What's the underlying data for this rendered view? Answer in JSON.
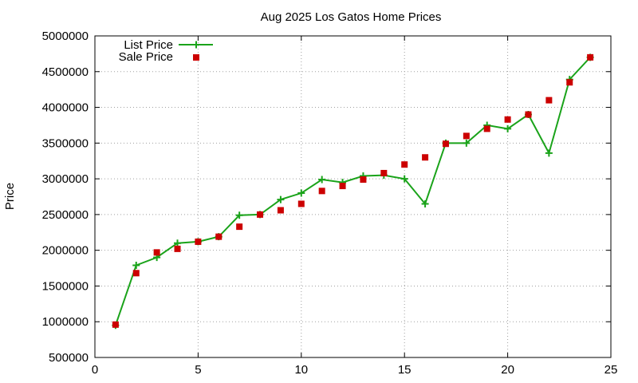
{
  "chart_data": {
    "type": "line",
    "title": "Aug 2025 Los Gatos Home Prices",
    "xlabel": "",
    "ylabel": "Price",
    "xlim": [
      0,
      25
    ],
    "ylim": [
      500000,
      5000000
    ],
    "xticks": [
      0,
      5,
      10,
      15,
      20,
      25
    ],
    "yticks": [
      500000,
      1000000,
      1500000,
      2000000,
      2500000,
      3000000,
      3500000,
      4000000,
      4500000,
      5000000
    ],
    "grid": true,
    "legend_position": "top-left",
    "series": [
      {
        "name": "List Price",
        "style": "line-with-plus-markers",
        "color": "#1aa31a",
        "x": [
          1,
          2,
          3,
          4,
          5,
          6,
          7,
          8,
          9,
          10,
          11,
          12,
          13,
          14,
          15,
          16,
          17,
          18,
          19,
          20,
          21,
          22,
          23,
          24
        ],
        "y": [
          950000,
          1790000,
          1900000,
          2100000,
          2120000,
          2190000,
          2490000,
          2500000,
          2710000,
          2800000,
          2990000,
          2950000,
          3040000,
          3050000,
          3000000,
          2650000,
          3500000,
          3500000,
          3750000,
          3700000,
          3900000,
          3360000,
          4390000,
          4700000
        ]
      },
      {
        "name": "Sale Price",
        "style": "square-markers",
        "color": "#cc0000",
        "x": [
          1,
          2,
          3,
          4,
          5,
          6,
          7,
          8,
          9,
          10,
          11,
          12,
          13,
          14,
          15,
          16,
          17,
          18,
          19,
          20,
          21,
          22,
          23,
          24
        ],
        "y": [
          960000,
          1680000,
          1970000,
          2020000,
          2120000,
          2190000,
          2330000,
          2500000,
          2560000,
          2650000,
          2830000,
          2900000,
          2990000,
          3080000,
          3200000,
          3300000,
          3490000,
          3600000,
          3700000,
          3830000,
          3900000,
          4100000,
          4350000,
          4700000
        ]
      }
    ]
  }
}
